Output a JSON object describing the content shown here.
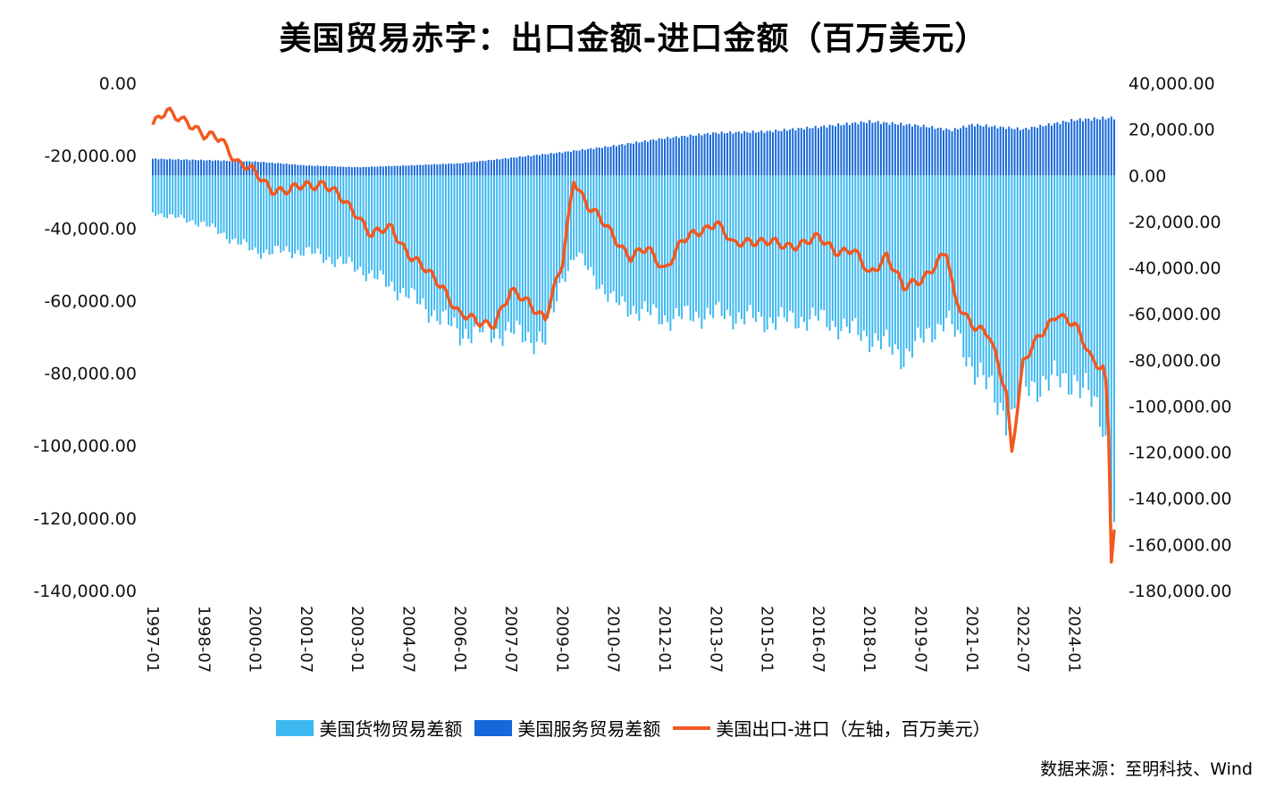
{
  "chart_data": {
    "type": "bar+line",
    "title": "美国贸易赤字：出口金额-进口金额（百万美元）",
    "source": "数据来源：至明科技、Wind",
    "left_axis": {
      "ticks": [
        "0.00",
        "-20,000.00",
        "-40,000.00",
        "-60,000.00",
        "-80,000.00",
        "-100,000.00",
        "-120,000.00",
        "-140,000.00"
      ],
      "min": -140000,
      "max": 0
    },
    "right_axis": {
      "ticks": [
        "40,000.00",
        "20,000.00",
        "0.00",
        "-20,000.00",
        "-40,000.00",
        "-60,000.00",
        "-80,000.00",
        "-100,000.00",
        "-120,000.00",
        "-140,000.00",
        "-160,000.00",
        "-180,000.00"
      ],
      "min": -180000,
      "max": 40000
    },
    "x_tick_labels": [
      "1997-01",
      "1998-07",
      "2000-01",
      "2001-07",
      "2003-01",
      "2004-07",
      "2006-01",
      "2007-07",
      "2009-01",
      "2010-07",
      "2012-01",
      "2013-07",
      "2015-01",
      "2016-07",
      "2018-01",
      "2019-07",
      "2021-01",
      "2022-07",
      "2024-01"
    ],
    "x_start": "1997-01",
    "x_end": "2025-03",
    "series": [
      {
        "name": "美国货物贸易差额",
        "type": "bar",
        "axis": "right",
        "color": "#3db8f0",
        "anchors": [
          [
            "1997-01",
            -16000
          ],
          [
            "1998-07",
            -21000
          ],
          [
            "2000-01",
            -33000
          ],
          [
            "2001-07",
            -33000
          ],
          [
            "2003-01",
            -40000
          ],
          [
            "2004-07",
            -52000
          ],
          [
            "2006-01",
            -68000
          ],
          [
            "2007-07",
            -68000
          ],
          [
            "2008-07",
            -72000
          ],
          [
            "2009-01",
            -44000
          ],
          [
            "2009-06",
            -34000
          ],
          [
            "2010-07",
            -55000
          ],
          [
            "2012-01",
            -62000
          ],
          [
            "2013-07",
            -60000
          ],
          [
            "2015-01",
            -63000
          ],
          [
            "2016-07",
            -62000
          ],
          [
            "2018-01",
            -70000
          ],
          [
            "2019-01",
            -78000
          ],
          [
            "2019-07",
            -72000
          ],
          [
            "2020-04",
            -62000
          ],
          [
            "2021-01",
            -82000
          ],
          [
            "2022-03",
            -107000
          ],
          [
            "2022-07",
            -92000
          ],
          [
            "2023-01",
            -90000
          ],
          [
            "2024-01",
            -88000
          ],
          [
            "2024-07",
            -98000
          ],
          [
            "2024-11",
            -105000
          ],
          [
            "2025-01",
            -122000
          ],
          [
            "2025-02",
            -136000
          ],
          [
            "2025-03",
            -148000
          ]
        ]
      },
      {
        "name": "美国服务贸易差额",
        "type": "bar",
        "axis": "right",
        "color": "#1667d9",
        "anchors": [
          [
            "1997-01",
            7200
          ],
          [
            "1998-07",
            6600
          ],
          [
            "2000-01",
            6000
          ],
          [
            "2001-07",
            4300
          ],
          [
            "2003-01",
            3500
          ],
          [
            "2004-07",
            4300
          ],
          [
            "2006-01",
            5200
          ],
          [
            "2007-07",
            7600
          ],
          [
            "2009-01",
            10000
          ],
          [
            "2010-07",
            12800
          ],
          [
            "2012-01",
            16100
          ],
          [
            "2013-07",
            18400
          ],
          [
            "2015-01",
            19000
          ],
          [
            "2016-07",
            21000
          ],
          [
            "2018-01",
            23300
          ],
          [
            "2019-07",
            21500
          ],
          [
            "2020-06",
            19600
          ],
          [
            "2021-01",
            22000
          ],
          [
            "2022-07",
            20000
          ],
          [
            "2024-01",
            24000
          ],
          [
            "2025-03",
            25000
          ]
        ]
      },
      {
        "name": "美国出口-进口（左轴，百万美元）",
        "type": "line",
        "axis": "left",
        "color": "#f2581f",
        "anchors": [
          [
            "1997-01",
            -11500
          ],
          [
            "1997-06",
            -8200
          ],
          [
            "1998-01",
            -10000
          ],
          [
            "1998-07",
            -15000
          ],
          [
            "1999-01",
            -15000
          ],
          [
            "1999-07",
            -22000
          ],
          [
            "2000-01",
            -25000
          ],
          [
            "2000-07",
            -29000
          ],
          [
            "2001-01",
            -30000
          ],
          [
            "2001-07",
            -28000
          ],
          [
            "2002-01",
            -27500
          ],
          [
            "2002-07",
            -32000
          ],
          [
            "2003-01",
            -36000
          ],
          [
            "2003-06",
            -42000
          ],
          [
            "2004-01",
            -40000
          ],
          [
            "2004-07",
            -47000
          ],
          [
            "2005-01",
            -52000
          ],
          [
            "2005-07",
            -56000
          ],
          [
            "2006-01",
            -64000
          ],
          [
            "2006-07",
            -66000
          ],
          [
            "2007-01",
            -66000
          ],
          [
            "2007-07",
            -58000
          ],
          [
            "2008-01",
            -60000
          ],
          [
            "2008-07",
            -65000
          ],
          [
            "2009-01",
            -50000
          ],
          [
            "2009-05",
            -26000
          ],
          [
            "2009-10",
            -34000
          ],
          [
            "2010-07",
            -42000
          ],
          [
            "2011-01",
            -48000
          ],
          [
            "2011-07",
            -46000
          ],
          [
            "2012-01",
            -51000
          ],
          [
            "2012-07",
            -44000
          ],
          [
            "2013-07",
            -38000
          ],
          [
            "2014-01",
            -45000
          ],
          [
            "2014-07",
            -43000
          ],
          [
            "2015-01",
            -44000
          ],
          [
            "2015-07",
            -45000
          ],
          [
            "2016-01",
            -44000
          ],
          [
            "2016-07",
            -43000
          ],
          [
            "2017-01",
            -46000
          ],
          [
            "2017-07",
            -46000
          ],
          [
            "2018-01",
            -53000
          ],
          [
            "2018-07",
            -47000
          ],
          [
            "2019-01",
            -57000
          ],
          [
            "2019-07",
            -54000
          ],
          [
            "2020-04",
            -47000
          ],
          [
            "2020-07",
            -60000
          ],
          [
            "2021-01",
            -66000
          ],
          [
            "2021-07",
            -70000
          ],
          [
            "2022-01",
            -85000
          ],
          [
            "2022-03",
            -101000
          ],
          [
            "2022-07",
            -77000
          ],
          [
            "2023-01",
            -70000
          ],
          [
            "2023-07",
            -63000
          ],
          [
            "2024-01",
            -67000
          ],
          [
            "2024-07",
            -76000
          ],
          [
            "2024-11",
            -78000
          ],
          [
            "2024-12",
            -82000
          ],
          [
            "2025-01",
            -95000
          ],
          [
            "2025-02",
            -131000
          ],
          [
            "2025-03",
            -123000
          ]
        ]
      }
    ]
  }
}
